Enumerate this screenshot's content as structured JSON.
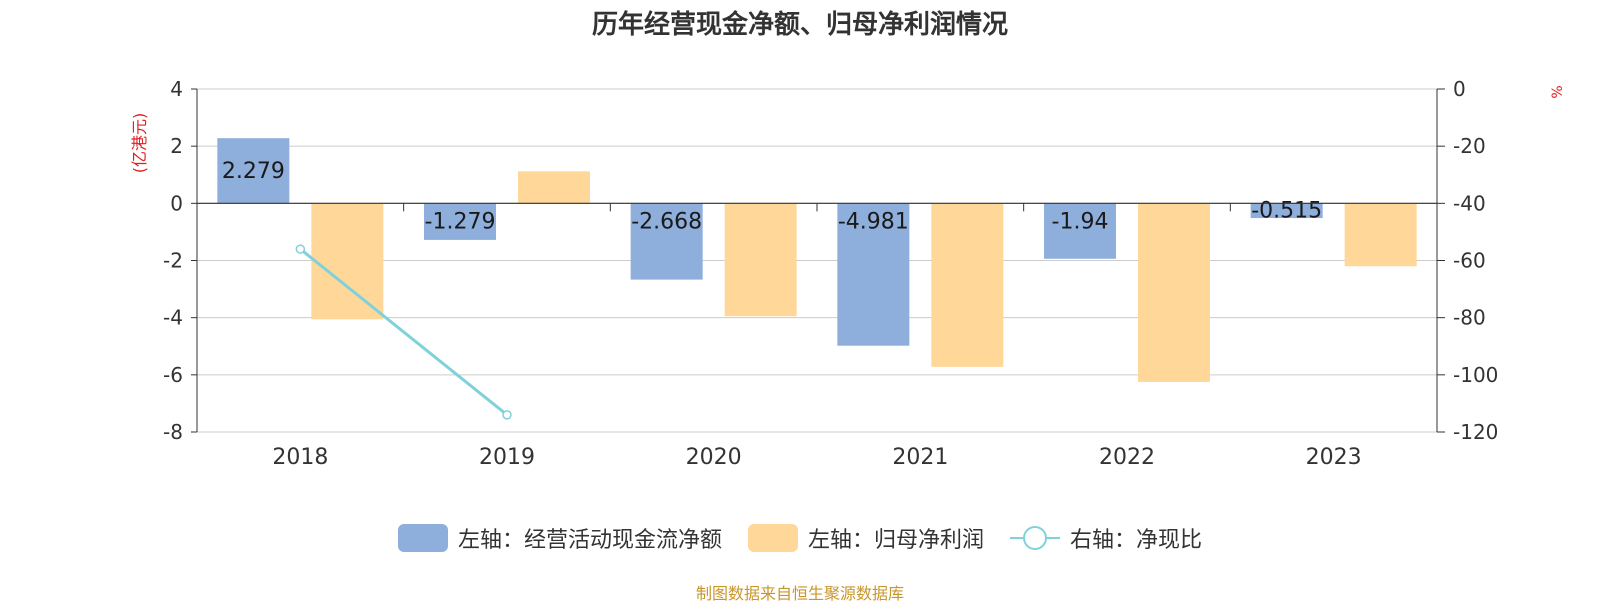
{
  "title": "历年经营现金净额、归母净利润情况",
  "left_axis_unit": "(亿港元)",
  "right_axis_unit": "%",
  "source": "制图数据来自恒生聚源数据库",
  "legend": [
    {
      "label": "左轴：经营活动现金流净额",
      "color": "#8eaedb",
      "kind": "bar"
    },
    {
      "label": "左轴：归母净利润",
      "color": "#ffd899",
      "kind": "bar"
    },
    {
      "label": "右轴：净现比",
      "color": "#7fd1da",
      "kind": "line"
    }
  ],
  "chart_data": {
    "type": "bar",
    "categories": [
      "2018",
      "2019",
      "2020",
      "2021",
      "2022",
      "2023"
    ],
    "series": [
      {
        "name": "左轴：经营活动现金流净额",
        "axis": "left",
        "type": "bar",
        "color": "#8eaedb",
        "values": [
          2.279,
          -1.279,
          -2.668,
          -4.981,
          -1.94,
          -0.515
        ],
        "labels": [
          "2.279",
          "-1.279",
          "-2.668",
          "-4.981",
          "-1.94",
          "-0.515"
        ]
      },
      {
        "name": "左轴：归母净利润",
        "axis": "left",
        "type": "bar",
        "color": "#ffd899",
        "values": [
          -4.06,
          1.12,
          -3.95,
          -5.72,
          -6.25,
          -2.2
        ]
      },
      {
        "name": "右轴：净现比",
        "axis": "right",
        "type": "line",
        "color": "#7fd1da",
        "values": [
          -56,
          -114,
          null,
          null,
          null,
          null
        ]
      }
    ],
    "left_axis": {
      "ylim": [
        -8,
        4
      ],
      "ticks": [
        "4",
        "2",
        "0",
        "-2",
        "-4",
        "-6",
        "-8"
      ]
    },
    "right_axis": {
      "ylim": [
        -120,
        0
      ],
      "ticks": [
        "0",
        "-20",
        "-40",
        "-60",
        "-80",
        "-100",
        "-120"
      ]
    },
    "grid": true,
    "legend_position": "bottom"
  }
}
